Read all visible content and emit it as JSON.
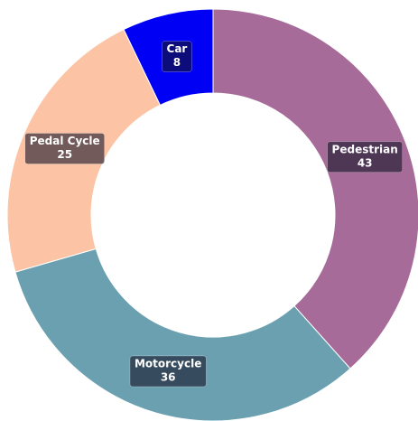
{
  "chart_data": {
    "type": "donut",
    "categories": [
      "Pedestrian",
      "Motorcycle",
      "Pedal Cycle",
      "Car"
    ],
    "values": [
      43,
      36,
      25,
      8
    ],
    "colors": [
      "#a66b98",
      "#6aa0b0",
      "#fcc4a4",
      "#0000f5"
    ]
  }
}
